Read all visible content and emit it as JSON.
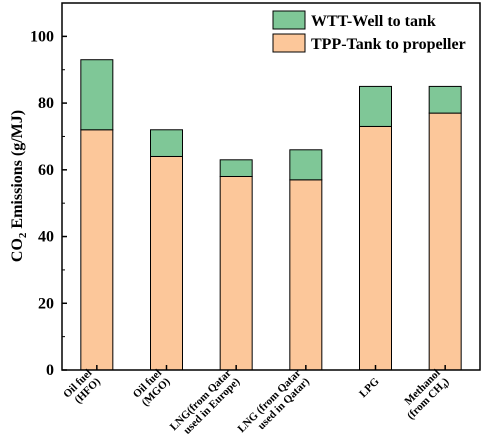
{
  "chart_data": {
    "type": "bar",
    "stacked": true,
    "categories": [
      [
        "Oil fuel",
        "(HFO)"
      ],
      [
        "Oil fuel",
        "(MGO)"
      ],
      [
        "LNG(from Qatar",
        "used in Europe)"
      ],
      [
        "LNG (from Qatar",
        "used in Qatar)"
      ],
      [
        "LPG"
      ],
      [
        "Methanol",
        "(from CH4)"
      ]
    ],
    "series": [
      {
        "name": "TPP-Tank to propeller",
        "color": "#FCC79A",
        "values": [
          72,
          64,
          58,
          57,
          73,
          77
        ]
      },
      {
        "name": "WTT-Well to tank",
        "color": "#7FC797",
        "values": [
          21,
          8,
          5,
          9,
          12,
          8
        ]
      }
    ],
    "ylabel": "CO2 Emissions (g/MJ)",
    "ylim": [
      0,
      110
    ],
    "yticks": [
      0,
      20,
      40,
      60,
      80,
      100
    ],
    "grid": false,
    "legend_position": "top-right",
    "legend_order": [
      "WTT-Well to tank",
      "TPP-Tank to propeller"
    ]
  }
}
